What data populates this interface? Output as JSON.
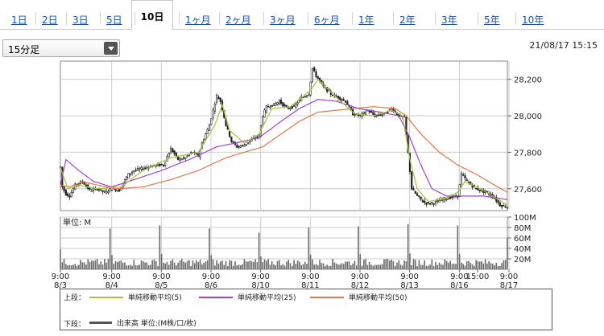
{
  "tabs": [
    {
      "label": "1日",
      "active": false
    },
    {
      "label": "2日",
      "active": false
    },
    {
      "label": "3日",
      "active": false
    },
    {
      "label": "5日",
      "active": false
    },
    {
      "label": "10日",
      "active": true
    },
    {
      "label": "1ヶ月",
      "active": false
    },
    {
      "label": "2ヶ月",
      "active": false
    },
    {
      "label": "3ヶ月",
      "active": false
    },
    {
      "label": "6ヶ月",
      "active": false
    },
    {
      "label": "1年",
      "active": false
    },
    {
      "label": "2年",
      "active": false
    },
    {
      "label": "3年",
      "active": false
    },
    {
      "label": "5年",
      "active": false
    },
    {
      "label": "10年",
      "active": false
    }
  ],
  "interval_select": {
    "value": "15分足"
  },
  "timestamp": "21/08/17 15:15",
  "legend": {
    "upper_label": "上段：",
    "lower_label": "下段：",
    "ma5": "単純移動平均(5)",
    "ma25": "単純移動平均(25)",
    "ma50": "単純移動平均(50)",
    "volume": "出来高 単位:(M株/口/枚)"
  },
  "colors": {
    "ma5": "#a6c23a",
    "ma25": "#a040d8",
    "ma50": "#e0784a",
    "candle": "#1a1a1a",
    "volume": "#6b6b6b",
    "tab_link": "#1a4fa6"
  },
  "chart_data": {
    "type": "candlestick",
    "price_axis": {
      "ticks": [
        27600,
        27800,
        28000,
        28200
      ],
      "ylim": [
        27480,
        28300
      ]
    },
    "volume_axis": {
      "unit_label": "単位: M",
      "ticks": [
        "20M",
        "40M",
        "60M",
        "80M",
        "100M"
      ],
      "ylim": [
        0,
        100
      ]
    },
    "x_ticks": [
      {
        "time": "9:00",
        "date": "8/3"
      },
      {
        "time": "9:00",
        "date": "8/4"
      },
      {
        "time": "9:00",
        "date": "8/5"
      },
      {
        "time": "9:00",
        "date": "8/6"
      },
      {
        "time": "9:00",
        "date": "8/10"
      },
      {
        "time": "9:00",
        "date": "8/11"
      },
      {
        "time": "9:00",
        "date": "8/12"
      },
      {
        "time": "9:00",
        "date": "8/13"
      },
      {
        "time": "9:00",
        "date": "8/16"
      },
      {
        "time": "9:00",
        "date": "8/17"
      },
      {
        "time": "15:00",
        "date": ""
      }
    ],
    "days": [
      "8/3",
      "8/4",
      "8/5",
      "8/6",
      "8/10",
      "8/11",
      "8/12",
      "8/13",
      "8/16",
      "8/17"
    ],
    "close_path": [
      [
        0,
        27720
      ],
      [
        1,
        27610
      ],
      [
        3,
        27570
      ],
      [
        5,
        27560
      ],
      [
        8,
        27620
      ],
      [
        12,
        27640
      ],
      [
        16,
        27590
      ],
      [
        20,
        27600
      ],
      [
        24,
        27580
      ],
      [
        28,
        27600
      ],
      [
        32,
        27590
      ],
      [
        34,
        27630
      ],
      [
        37,
        27680
      ],
      [
        40,
        27700
      ],
      [
        44,
        27710
      ],
      [
        48,
        27720
      ],
      [
        52,
        27730
      ],
      [
        56,
        27730
      ],
      [
        60,
        27820
      ],
      [
        64,
        27760
      ],
      [
        68,
        27770
      ],
      [
        70,
        27790
      ],
      [
        72,
        27800
      ],
      [
        75,
        27780
      ],
      [
        77,
        27850
      ],
      [
        81,
        27950
      ],
      [
        85,
        28110
      ],
      [
        87,
        28080
      ],
      [
        90,
        27950
      ],
      [
        93,
        27860
      ],
      [
        96,
        27830
      ],
      [
        100,
        27840
      ],
      [
        104,
        27870
      ],
      [
        108,
        27890
      ],
      [
        110,
        28000
      ],
      [
        112,
        28050
      ],
      [
        116,
        28060
      ],
      [
        119,
        28080
      ],
      [
        123,
        28040
      ],
      [
        127,
        28050
      ],
      [
        131,
        28100
      ],
      [
        135,
        28120
      ],
      [
        137,
        28260
      ],
      [
        139,
        28220
      ],
      [
        143,
        28160
      ],
      [
        147,
        28120
      ],
      [
        151,
        28100
      ],
      [
        155,
        28080
      ],
      [
        159,
        28010
      ],
      [
        163,
        28000
      ],
      [
        167,
        28030
      ],
      [
        171,
        28000
      ],
      [
        176,
        28010
      ],
      [
        180,
        28040
      ],
      [
        184,
        28000
      ],
      [
        187,
        27990
      ],
      [
        191,
        27600
      ],
      [
        194,
        27560
      ],
      [
        197,
        27530
      ],
      [
        199,
        27520
      ],
      [
        203,
        27520
      ],
      [
        207,
        27540
      ],
      [
        211,
        27550
      ],
      [
        216,
        27560
      ],
      [
        218,
        27680
      ],
      [
        222,
        27630
      ],
      [
        226,
        27600
      ],
      [
        231,
        27580
      ],
      [
        235,
        27560
      ],
      [
        239,
        27510
      ],
      [
        243,
        27500
      ]
    ],
    "volume_sessions_start": [
      0,
      27,
      54,
      81,
      108,
      135,
      162,
      189,
      216,
      243
    ],
    "peak_volumes": [
      38,
      78,
      84,
      78,
      70,
      80,
      82,
      86,
      84,
      82,
      60
    ],
    "ma5_path": [
      [
        0,
        27720
      ],
      [
        4,
        27600
      ],
      [
        10,
        27620
      ],
      [
        20,
        27600
      ],
      [
        33,
        27610
      ],
      [
        45,
        27700
      ],
      [
        60,
        27770
      ],
      [
        75,
        27800
      ],
      [
        84,
        27950
      ],
      [
        88,
        28060
      ],
      [
        92,
        27920
      ],
      [
        100,
        27850
      ],
      [
        108,
        27900
      ],
      [
        115,
        28040
      ],
      [
        125,
        28050
      ],
      [
        136,
        28140
      ],
      [
        140,
        28200
      ],
      [
        148,
        28120
      ],
      [
        160,
        28010
      ],
      [
        170,
        28000
      ],
      [
        180,
        28030
      ],
      [
        186,
        28000
      ],
      [
        190,
        27760
      ],
      [
        194,
        27600
      ],
      [
        200,
        27530
      ],
      [
        210,
        27550
      ],
      [
        216,
        27580
      ],
      [
        220,
        27640
      ],
      [
        230,
        27590
      ],
      [
        243,
        27510
      ]
    ],
    "ma25_path": [
      [
        0,
        27620
      ],
      [
        3,
        27760
      ],
      [
        10,
        27700
      ],
      [
        18,
        27640
      ],
      [
        28,
        27610
      ],
      [
        40,
        27650
      ],
      [
        55,
        27700
      ],
      [
        70,
        27760
      ],
      [
        85,
        27830
      ],
      [
        95,
        27850
      ],
      [
        108,
        27880
      ],
      [
        120,
        27970
      ],
      [
        130,
        28040
      ],
      [
        140,
        28090
      ],
      [
        150,
        28080
      ],
      [
        162,
        28040
      ],
      [
        174,
        28020
      ],
      [
        184,
        28000
      ],
      [
        190,
        27880
      ],
      [
        196,
        27730
      ],
      [
        202,
        27600
      ],
      [
        210,
        27560
      ],
      [
        220,
        27560
      ],
      [
        230,
        27560
      ],
      [
        243,
        27540
      ]
    ],
    "ma50_path": [
      [
        0,
        27620
      ],
      [
        5,
        27610
      ],
      [
        12,
        27640
      ],
      [
        20,
        27620
      ],
      [
        30,
        27600
      ],
      [
        45,
        27610
      ],
      [
        60,
        27650
      ],
      [
        75,
        27700
      ],
      [
        90,
        27770
      ],
      [
        100,
        27800
      ],
      [
        110,
        27830
      ],
      [
        120,
        27900
      ],
      [
        130,
        27970
      ],
      [
        140,
        28020
      ],
      [
        150,
        28030
      ],
      [
        160,
        28040
      ],
      [
        170,
        28050
      ],
      [
        182,
        28040
      ],
      [
        188,
        28000
      ],
      [
        196,
        27900
      ],
      [
        206,
        27800
      ],
      [
        216,
        27730
      ],
      [
        226,
        27680
      ],
      [
        236,
        27620
      ],
      [
        243,
        27580
      ]
    ]
  }
}
